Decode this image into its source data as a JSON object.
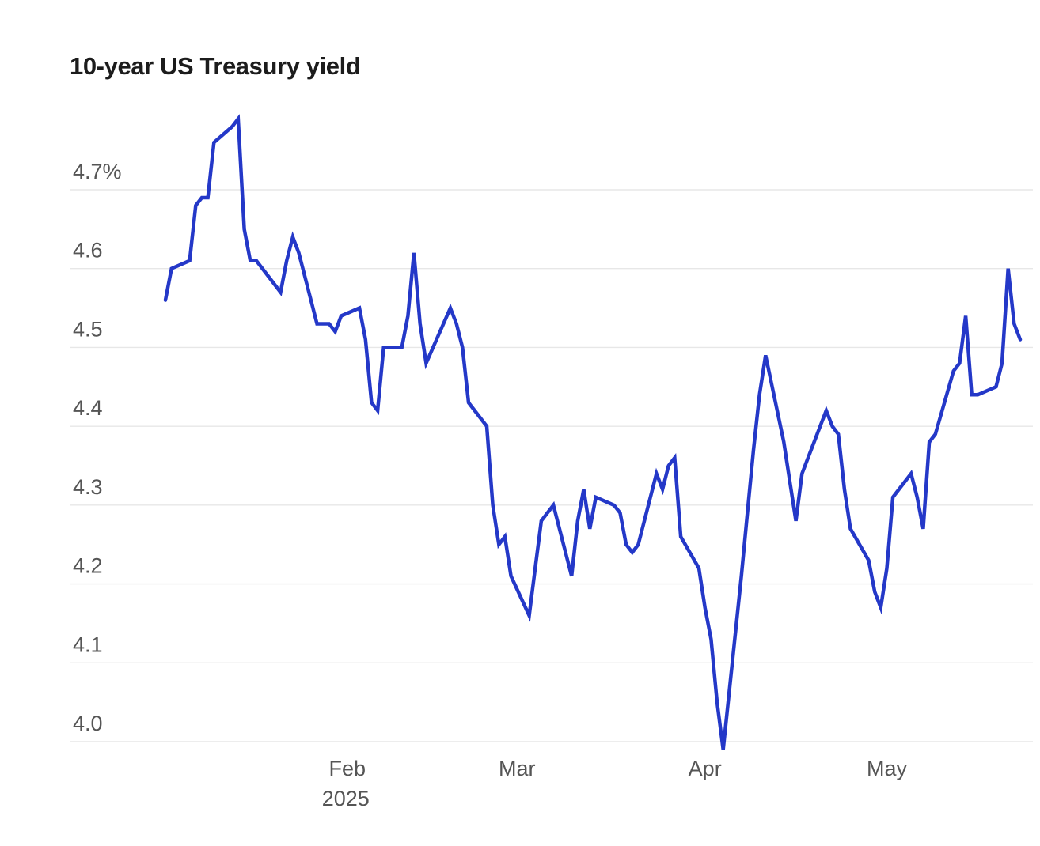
{
  "chart": {
    "line_color": "#2438c8",
    "grid_color": "#e7e7e7",
    "label_color": "#555555",
    "title_color": "#1c1c1c",
    "background": "#ffffff",
    "line_width": 4.5
  },
  "chart_data": {
    "type": "line",
    "title": "10-year US Treasury yield",
    "unit": "percent",
    "grid": true,
    "legend": false,
    "ylim": [
      3.95,
      4.82
    ],
    "y_ticks": [
      {
        "value": 4.7,
        "label": "4.7%"
      },
      {
        "value": 4.6,
        "label": "4.6"
      },
      {
        "value": 4.5,
        "label": "4.5"
      },
      {
        "value": 4.4,
        "label": "4.4"
      },
      {
        "value": 4.3,
        "label": "4.3"
      },
      {
        "value": 4.2,
        "label": "4.2"
      },
      {
        "value": 4.1,
        "label": "4.1"
      },
      {
        "value": 4.0,
        "label": "4.0"
      }
    ],
    "x_ticks": [
      {
        "date": "2025-02-01",
        "label": "Feb",
        "sublabel": "2025"
      },
      {
        "date": "2025-03-01",
        "label": "Mar",
        "sublabel": ""
      },
      {
        "date": "2025-04-01",
        "label": "Apr",
        "sublabel": ""
      },
      {
        "date": "2025-05-01",
        "label": "May",
        "sublabel": ""
      }
    ],
    "x": [
      "2025-01-02",
      "2025-01-03",
      "2025-01-06",
      "2025-01-07",
      "2025-01-08",
      "2025-01-09",
      "2025-01-10",
      "2025-01-13",
      "2025-01-14",
      "2025-01-15",
      "2025-01-16",
      "2025-01-17",
      "2025-01-21",
      "2025-01-22",
      "2025-01-23",
      "2025-01-24",
      "2025-01-27",
      "2025-01-28",
      "2025-01-29",
      "2025-01-30",
      "2025-01-31",
      "2025-02-03",
      "2025-02-04",
      "2025-02-05",
      "2025-02-06",
      "2025-02-07",
      "2025-02-10",
      "2025-02-11",
      "2025-02-12",
      "2025-02-13",
      "2025-02-14",
      "2025-02-18",
      "2025-02-19",
      "2025-02-20",
      "2025-02-21",
      "2025-02-24",
      "2025-02-25",
      "2025-02-26",
      "2025-02-27",
      "2025-02-28",
      "2025-03-03",
      "2025-03-04",
      "2025-03-05",
      "2025-03-06",
      "2025-03-07",
      "2025-03-10",
      "2025-03-11",
      "2025-03-12",
      "2025-03-13",
      "2025-03-14",
      "2025-03-17",
      "2025-03-18",
      "2025-03-19",
      "2025-03-20",
      "2025-03-21",
      "2025-03-24",
      "2025-03-25",
      "2025-03-26",
      "2025-03-27",
      "2025-03-28",
      "2025-03-31",
      "2025-04-01",
      "2025-04-02",
      "2025-04-03",
      "2025-04-04",
      "2025-04-07",
      "2025-04-08",
      "2025-04-09",
      "2025-04-10",
      "2025-04-11",
      "2025-04-14",
      "2025-04-15",
      "2025-04-16",
      "2025-04-17",
      "2025-04-21",
      "2025-04-22",
      "2025-04-23",
      "2025-04-24",
      "2025-04-25",
      "2025-04-28",
      "2025-04-29",
      "2025-04-30",
      "2025-05-01",
      "2025-05-02",
      "2025-05-05",
      "2025-05-06",
      "2025-05-07",
      "2025-05-08",
      "2025-05-09",
      "2025-05-12",
      "2025-05-13",
      "2025-05-14",
      "2025-05-15",
      "2025-05-16",
      "2025-05-19",
      "2025-05-20",
      "2025-05-21",
      "2025-05-22",
      "2025-05-23"
    ],
    "values": [
      4.56,
      4.6,
      4.61,
      4.68,
      4.69,
      4.69,
      4.76,
      4.78,
      4.79,
      4.65,
      4.61,
      4.61,
      4.57,
      4.61,
      4.64,
      4.62,
      4.53,
      4.53,
      4.53,
      4.52,
      4.54,
      4.55,
      4.51,
      4.43,
      4.42,
      4.5,
      4.5,
      4.54,
      4.62,
      4.53,
      4.48,
      4.55,
      4.53,
      4.5,
      4.43,
      4.4,
      4.3,
      4.25,
      4.26,
      4.21,
      4.16,
      4.22,
      4.28,
      4.29,
      4.3,
      4.21,
      4.28,
      4.32,
      4.27,
      4.31,
      4.3,
      4.29,
      4.25,
      4.24,
      4.25,
      4.34,
      4.32,
      4.35,
      4.36,
      4.26,
      4.22,
      4.17,
      4.13,
      4.05,
      3.99,
      4.21,
      4.29,
      4.37,
      4.44,
      4.49,
      4.38,
      4.33,
      4.28,
      4.34,
      4.42,
      4.4,
      4.39,
      4.32,
      4.27,
      4.23,
      4.19,
      4.17,
      4.22,
      4.31,
      4.34,
      4.31,
      4.27,
      4.38,
      4.39,
      4.47,
      4.48,
      4.54,
      4.44,
      4.44,
      4.45,
      4.48,
      4.6,
      4.53,
      4.51
    ]
  }
}
